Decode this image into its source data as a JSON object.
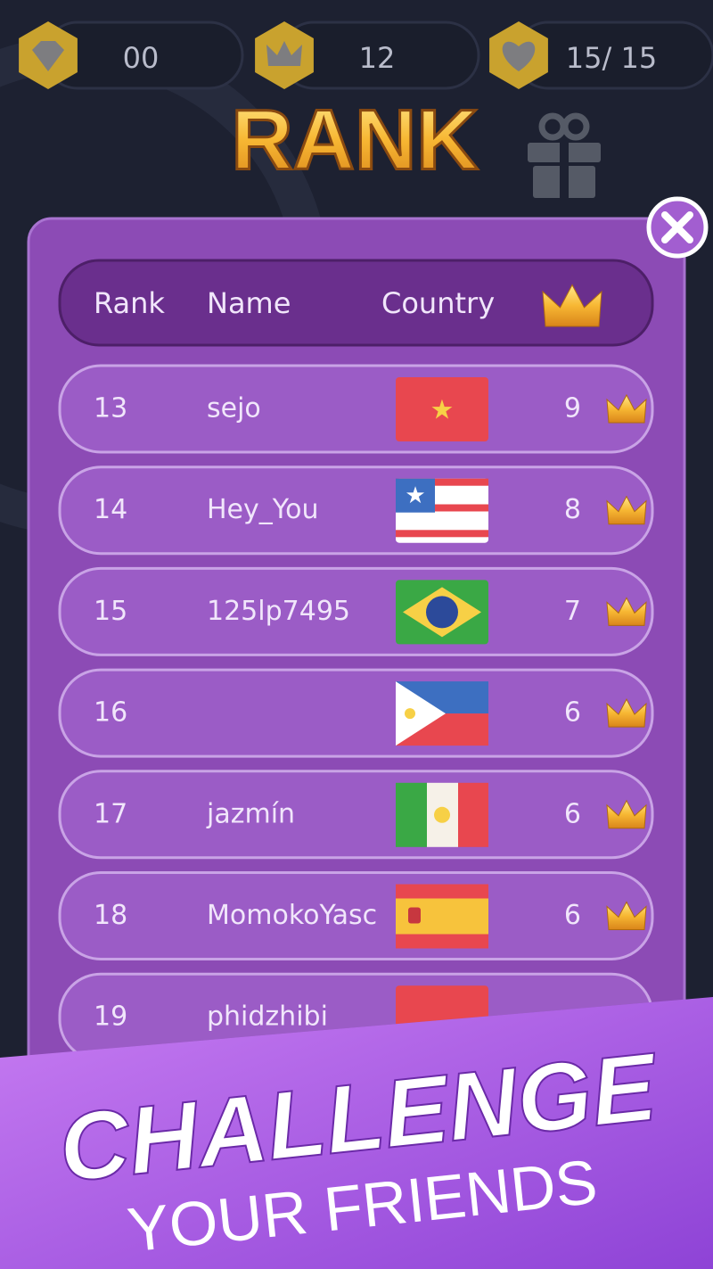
{
  "stats": [
    {
      "value": "00"
    },
    {
      "value": "12"
    },
    {
      "value": "15/ 15"
    }
  ],
  "title": "RANK",
  "table": {
    "header": [
      "Rank",
      "Name",
      "Country"
    ],
    "rows": [
      {
        "rank": 13,
        "name": "sejo",
        "score": 9
      },
      {
        "rank": 14,
        "name": "Hey_You",
        "score": 8
      },
      {
        "rank": 15,
        "name": "125lp7495",
        "score": 7
      },
      {
        "rank": 16,
        "score": 6
      },
      {
        "rank": 17,
        "name": "jazmín",
        "score": 6
      },
      {
        "rank": 18,
        "name": "MomokoYasc",
        "score": 6
      },
      {
        "rank": 19,
        "name": "phidzhibi"
      }
    ]
  },
  "banner": {
    "title": "CHALLENGE",
    "subtitle": "YOUR FRIENDS"
  }
}
